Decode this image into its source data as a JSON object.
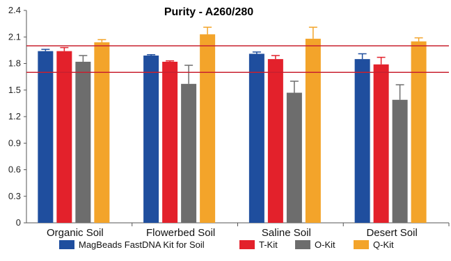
{
  "chart_data": {
    "type": "bar",
    "title": "Purity - A260/280",
    "xlabel": "",
    "ylabel": "",
    "categories": [
      "Organic Soil",
      "Flowerbed Soil",
      "Saline Soil",
      "Desert Soil"
    ],
    "ylim": [
      0,
      2.4
    ],
    "yticks": [
      "0",
      "0.3",
      "0.6",
      "0.9",
      "1.2",
      "1.5",
      "1.8",
      "2.1",
      "2.4"
    ],
    "reference_lines": [
      2.0,
      1.7
    ],
    "reference_color": "#c8202f",
    "legend_position": "bottom",
    "series": [
      {
        "name": "MagBeads FastDNA Kit for Soil",
        "color": "#1f4e9e",
        "values": [
          1.94,
          1.89,
          1.91,
          1.85
        ],
        "errors": [
          0.02,
          0.01,
          0.02,
          0.06
        ]
      },
      {
        "name": "T-Kit",
        "color": "#e3212b",
        "values": [
          1.94,
          1.82,
          1.85,
          1.79
        ],
        "errors": [
          0.04,
          0.01,
          0.04,
          0.08
        ]
      },
      {
        "name": "O-Kit",
        "color": "#6d6d6d",
        "values": [
          1.82,
          1.57,
          1.47,
          1.39
        ],
        "errors": [
          0.07,
          0.21,
          0.13,
          0.17
        ]
      },
      {
        "name": "Q-Kit",
        "color": "#f3a42a",
        "values": [
          2.04,
          2.13,
          2.08,
          2.05
        ],
        "errors": [
          0.03,
          0.08,
          0.13,
          0.04
        ]
      }
    ]
  }
}
